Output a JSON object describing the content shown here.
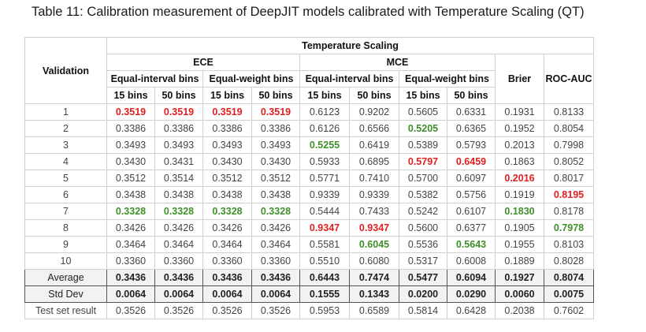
{
  "caption": "Table 11: Calibration measurement of DeepJIT models calibrated with Temperature Scaling (QT)",
  "headers": {
    "validation": "Validation",
    "group": "Temperature Scaling",
    "ece": "ECE",
    "mce": "MCE",
    "brier": "Brier",
    "rocauc": "ROC-AUC",
    "eq_interval": "Equal-interval bins",
    "eq_weight": "Equal-weight bins",
    "b15": "15 bins",
    "b50": "50 bins"
  },
  "rows": [
    {
      "label": "1",
      "cells": [
        {
          "v": "0.3519",
          "c": "red"
        },
        {
          "v": "0.3519",
          "c": "red"
        },
        {
          "v": "0.3519",
          "c": "red"
        },
        {
          "v": "0.3519",
          "c": "red"
        },
        {
          "v": "0.6123",
          "c": ""
        },
        {
          "v": "0.9202",
          "c": ""
        },
        {
          "v": "0.5605",
          "c": ""
        },
        {
          "v": "0.6331",
          "c": ""
        },
        {
          "v": "0.1931",
          "c": ""
        },
        {
          "v": "0.8133",
          "c": ""
        }
      ]
    },
    {
      "label": "2",
      "cells": [
        {
          "v": "0.3386",
          "c": ""
        },
        {
          "v": "0.3386",
          "c": ""
        },
        {
          "v": "0.3386",
          "c": ""
        },
        {
          "v": "0.3386",
          "c": ""
        },
        {
          "v": "0.6126",
          "c": ""
        },
        {
          "v": "0.6566",
          "c": ""
        },
        {
          "v": "0.5205",
          "c": "green"
        },
        {
          "v": "0.6365",
          "c": ""
        },
        {
          "v": "0.1952",
          "c": ""
        },
        {
          "v": "0.8054",
          "c": ""
        }
      ]
    },
    {
      "label": "3",
      "cells": [
        {
          "v": "0.3493",
          "c": ""
        },
        {
          "v": "0.3493",
          "c": ""
        },
        {
          "v": "0.3493",
          "c": ""
        },
        {
          "v": "0.3493",
          "c": ""
        },
        {
          "v": "0.5255",
          "c": "green"
        },
        {
          "v": "0.6419",
          "c": ""
        },
        {
          "v": "0.5389",
          "c": ""
        },
        {
          "v": "0.5793",
          "c": ""
        },
        {
          "v": "0.2013",
          "c": ""
        },
        {
          "v": "0.7998",
          "c": ""
        }
      ]
    },
    {
      "label": "4",
      "cells": [
        {
          "v": "0.3430",
          "c": ""
        },
        {
          "v": "0.3431",
          "c": ""
        },
        {
          "v": "0.3430",
          "c": ""
        },
        {
          "v": "0.3430",
          "c": ""
        },
        {
          "v": "0.5933",
          "c": ""
        },
        {
          "v": "0.6895",
          "c": ""
        },
        {
          "v": "0.5797",
          "c": "red"
        },
        {
          "v": "0.6459",
          "c": "red"
        },
        {
          "v": "0.1863",
          "c": ""
        },
        {
          "v": "0.8052",
          "c": ""
        }
      ]
    },
    {
      "label": "5",
      "cells": [
        {
          "v": "0.3512",
          "c": ""
        },
        {
          "v": "0.3514",
          "c": ""
        },
        {
          "v": "0.3512",
          "c": ""
        },
        {
          "v": "0.3512",
          "c": ""
        },
        {
          "v": "0.5771",
          "c": ""
        },
        {
          "v": "0.7410",
          "c": ""
        },
        {
          "v": "0.5700",
          "c": ""
        },
        {
          "v": "0.6097",
          "c": ""
        },
        {
          "v": "0.2016",
          "c": "red"
        },
        {
          "v": "0.8017",
          "c": ""
        }
      ]
    },
    {
      "label": "6",
      "cells": [
        {
          "v": "0.3438",
          "c": ""
        },
        {
          "v": "0.3438",
          "c": ""
        },
        {
          "v": "0.3438",
          "c": ""
        },
        {
          "v": "0.3438",
          "c": ""
        },
        {
          "v": "0.9339",
          "c": ""
        },
        {
          "v": "0.9339",
          "c": ""
        },
        {
          "v": "0.5382",
          "c": ""
        },
        {
          "v": "0.5756",
          "c": ""
        },
        {
          "v": "0.1919",
          "c": ""
        },
        {
          "v": "0.8195",
          "c": "red"
        }
      ]
    },
    {
      "label": "7",
      "cells": [
        {
          "v": "0.3328",
          "c": "green"
        },
        {
          "v": "0.3328",
          "c": "green"
        },
        {
          "v": "0.3328",
          "c": "green"
        },
        {
          "v": "0.3328",
          "c": "green"
        },
        {
          "v": "0.5444",
          "c": ""
        },
        {
          "v": "0.7433",
          "c": ""
        },
        {
          "v": "0.5242",
          "c": ""
        },
        {
          "v": "0.6107",
          "c": ""
        },
        {
          "v": "0.1830",
          "c": "green"
        },
        {
          "v": "0.8178",
          "c": ""
        }
      ]
    },
    {
      "label": "8",
      "cells": [
        {
          "v": "0.3426",
          "c": ""
        },
        {
          "v": "0.3426",
          "c": ""
        },
        {
          "v": "0.3426",
          "c": ""
        },
        {
          "v": "0.3426",
          "c": ""
        },
        {
          "v": "0.9347",
          "c": "red"
        },
        {
          "v": "0.9347",
          "c": "red"
        },
        {
          "v": "0.5600",
          "c": ""
        },
        {
          "v": "0.6377",
          "c": ""
        },
        {
          "v": "0.1905",
          "c": ""
        },
        {
          "v": "0.7978",
          "c": "green"
        }
      ]
    },
    {
      "label": "9",
      "cells": [
        {
          "v": "0.3464",
          "c": ""
        },
        {
          "v": "0.3464",
          "c": ""
        },
        {
          "v": "0.3464",
          "c": ""
        },
        {
          "v": "0.3464",
          "c": ""
        },
        {
          "v": "0.5581",
          "c": ""
        },
        {
          "v": "0.6045",
          "c": "green"
        },
        {
          "v": "0.5536",
          "c": ""
        },
        {
          "v": "0.5643",
          "c": "green"
        },
        {
          "v": "0.1955",
          "c": ""
        },
        {
          "v": "0.8103",
          "c": ""
        }
      ]
    },
    {
      "label": "10",
      "cells": [
        {
          "v": "0.3360",
          "c": ""
        },
        {
          "v": "0.3360",
          "c": ""
        },
        {
          "v": "0.3360",
          "c": ""
        },
        {
          "v": "0.3360",
          "c": ""
        },
        {
          "v": "0.5510",
          "c": ""
        },
        {
          "v": "0.6080",
          "c": ""
        },
        {
          "v": "0.5317",
          "c": ""
        },
        {
          "v": "0.6008",
          "c": ""
        },
        {
          "v": "0.1889",
          "c": ""
        },
        {
          "v": "0.8028",
          "c": ""
        }
      ]
    }
  ],
  "summary": [
    {
      "label": "Average",
      "values": [
        "0.3436",
        "0.3436",
        "0.3436",
        "0.3436",
        "0.6443",
        "0.7474",
        "0.5477",
        "0.6094",
        "0.1927",
        "0.8074"
      ]
    },
    {
      "label": "Std Dev",
      "values": [
        "0.0064",
        "0.0064",
        "0.0064",
        "0.0064",
        "0.1555",
        "0.1343",
        "0.0200",
        "0.0290",
        "0.0060",
        "0.0075"
      ]
    }
  ],
  "test": {
    "label": "Test set result",
    "values": [
      "0.3526",
      "0.3526",
      "0.3526",
      "0.3526",
      "0.5953",
      "0.6589",
      "0.5814",
      "0.6428",
      "0.2038",
      "0.7602"
    ]
  },
  "colors": {
    "best": "#e02020",
    "worst": "#3f8f2a",
    "border": "#cfcfcf",
    "summary_bg": "#f2f2f2"
  }
}
